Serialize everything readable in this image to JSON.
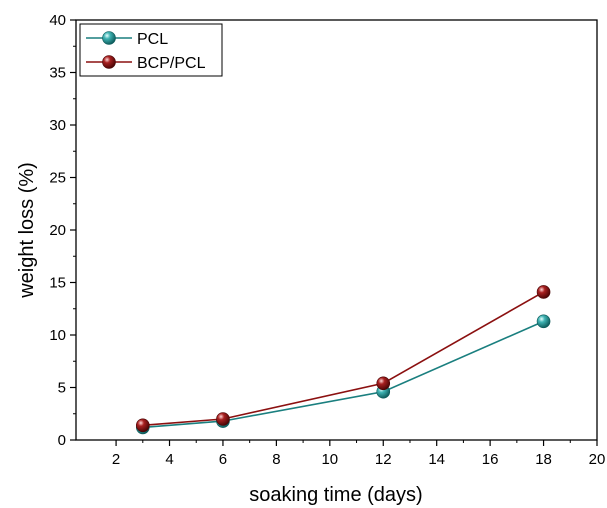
{
  "chart_data": {
    "type": "line",
    "title": "",
    "xlabel": "soaking time (days)",
    "ylabel": "weight loss (%)",
    "xlim": [
      0.5,
      20
    ],
    "ylim": [
      0,
      40
    ],
    "xticks": [
      2,
      4,
      6,
      8,
      10,
      12,
      14,
      16,
      18,
      20
    ],
    "yticks": [
      0,
      5,
      10,
      15,
      20,
      25,
      30,
      35,
      40
    ],
    "grid": false,
    "legend_position": "top-left",
    "x": [
      3,
      6,
      12,
      18
    ],
    "series": [
      {
        "name": "PCL",
        "values": [
          1.2,
          1.8,
          4.6,
          11.3
        ],
        "color": "#1a7f7f",
        "marker_color": "#2a9a9a"
      },
      {
        "name": "BCP/PCL",
        "values": [
          1.4,
          2.0,
          5.4,
          14.1
        ],
        "color": "#8b1010",
        "marker_color": "#9a1818"
      }
    ]
  }
}
